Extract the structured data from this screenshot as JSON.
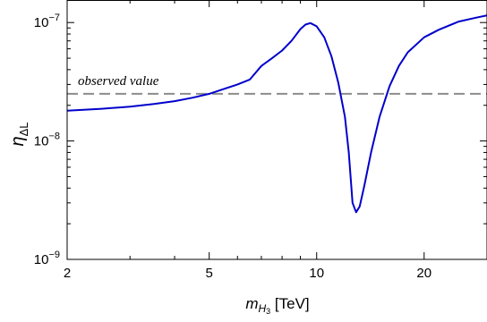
{
  "chart_data": {
    "type": "line",
    "xscale": "log",
    "yscale": "log",
    "xlim": [
      2,
      30
    ],
    "ylim": [
      1e-09,
      1.55e-07
    ],
    "x_ticks": [
      {
        "value": 2,
        "label": "2"
      },
      {
        "value": 5,
        "label": "5"
      },
      {
        "value": 10,
        "label": "10"
      },
      {
        "value": 20,
        "label": "20"
      }
    ],
    "y_ticks": [
      {
        "value": 1e-09,
        "base": "10",
        "exp": "−9"
      },
      {
        "value": 1e-08,
        "base": "10",
        "exp": "−8"
      },
      {
        "value": 1e-07,
        "base": "10",
        "exp": "−7"
      }
    ],
    "xlabel": {
      "main": "m",
      "sub": "H",
      "subsub": "3",
      "unit": " [TeV]"
    },
    "ylabel": {
      "main": "η",
      "sub": "ΔL"
    },
    "series": [
      {
        "color": "#0000cc",
        "points": [
          [
            2.0,
            1.8e-08
          ],
          [
            2.5,
            1.87e-08
          ],
          [
            3.0,
            1.95e-08
          ],
          [
            3.5,
            2.05e-08
          ],
          [
            4.0,
            2.17e-08
          ],
          [
            4.5,
            2.32e-08
          ],
          [
            5.0,
            2.5e-08
          ],
          [
            5.5,
            2.75e-08
          ],
          [
            6.0,
            3e-08
          ],
          [
            6.5,
            3.3e-08
          ],
          [
            7.0,
            4.3e-08
          ],
          [
            7.5,
            5e-08
          ],
          [
            8.0,
            5.8e-08
          ],
          [
            8.5,
            7e-08
          ],
          [
            9.0,
            8.8e-08
          ],
          [
            9.3,
            9.6e-08
          ],
          [
            9.6,
            9.9e-08
          ],
          [
            10.0,
            9.3e-08
          ],
          [
            10.5,
            7.5e-08
          ],
          [
            11.0,
            5.2e-08
          ],
          [
            11.5,
            3.1e-08
          ],
          [
            12.0,
            1.6e-08
          ],
          [
            12.3,
            8e-09
          ],
          [
            12.6,
            3e-09
          ],
          [
            12.9,
            2.5e-09
          ],
          [
            13.2,
            2.8e-09
          ],
          [
            13.6,
            4.2e-09
          ],
          [
            14.2,
            8e-09
          ],
          [
            15.0,
            1.6e-08
          ],
          [
            16.0,
            2.9e-08
          ],
          [
            17.0,
            4.3e-08
          ],
          [
            18.0,
            5.6e-08
          ],
          [
            20.0,
            7.5e-08
          ],
          [
            22.0,
            8.7e-08
          ],
          [
            25.0,
            1.02e-07
          ],
          [
            28.0,
            1.1e-07
          ],
          [
            30.0,
            1.15e-07
          ]
        ]
      }
    ],
    "reference_line": {
      "y": 2.5e-08,
      "style": "dashed",
      "color": "#8c8c8c",
      "label": "observed value"
    }
  }
}
